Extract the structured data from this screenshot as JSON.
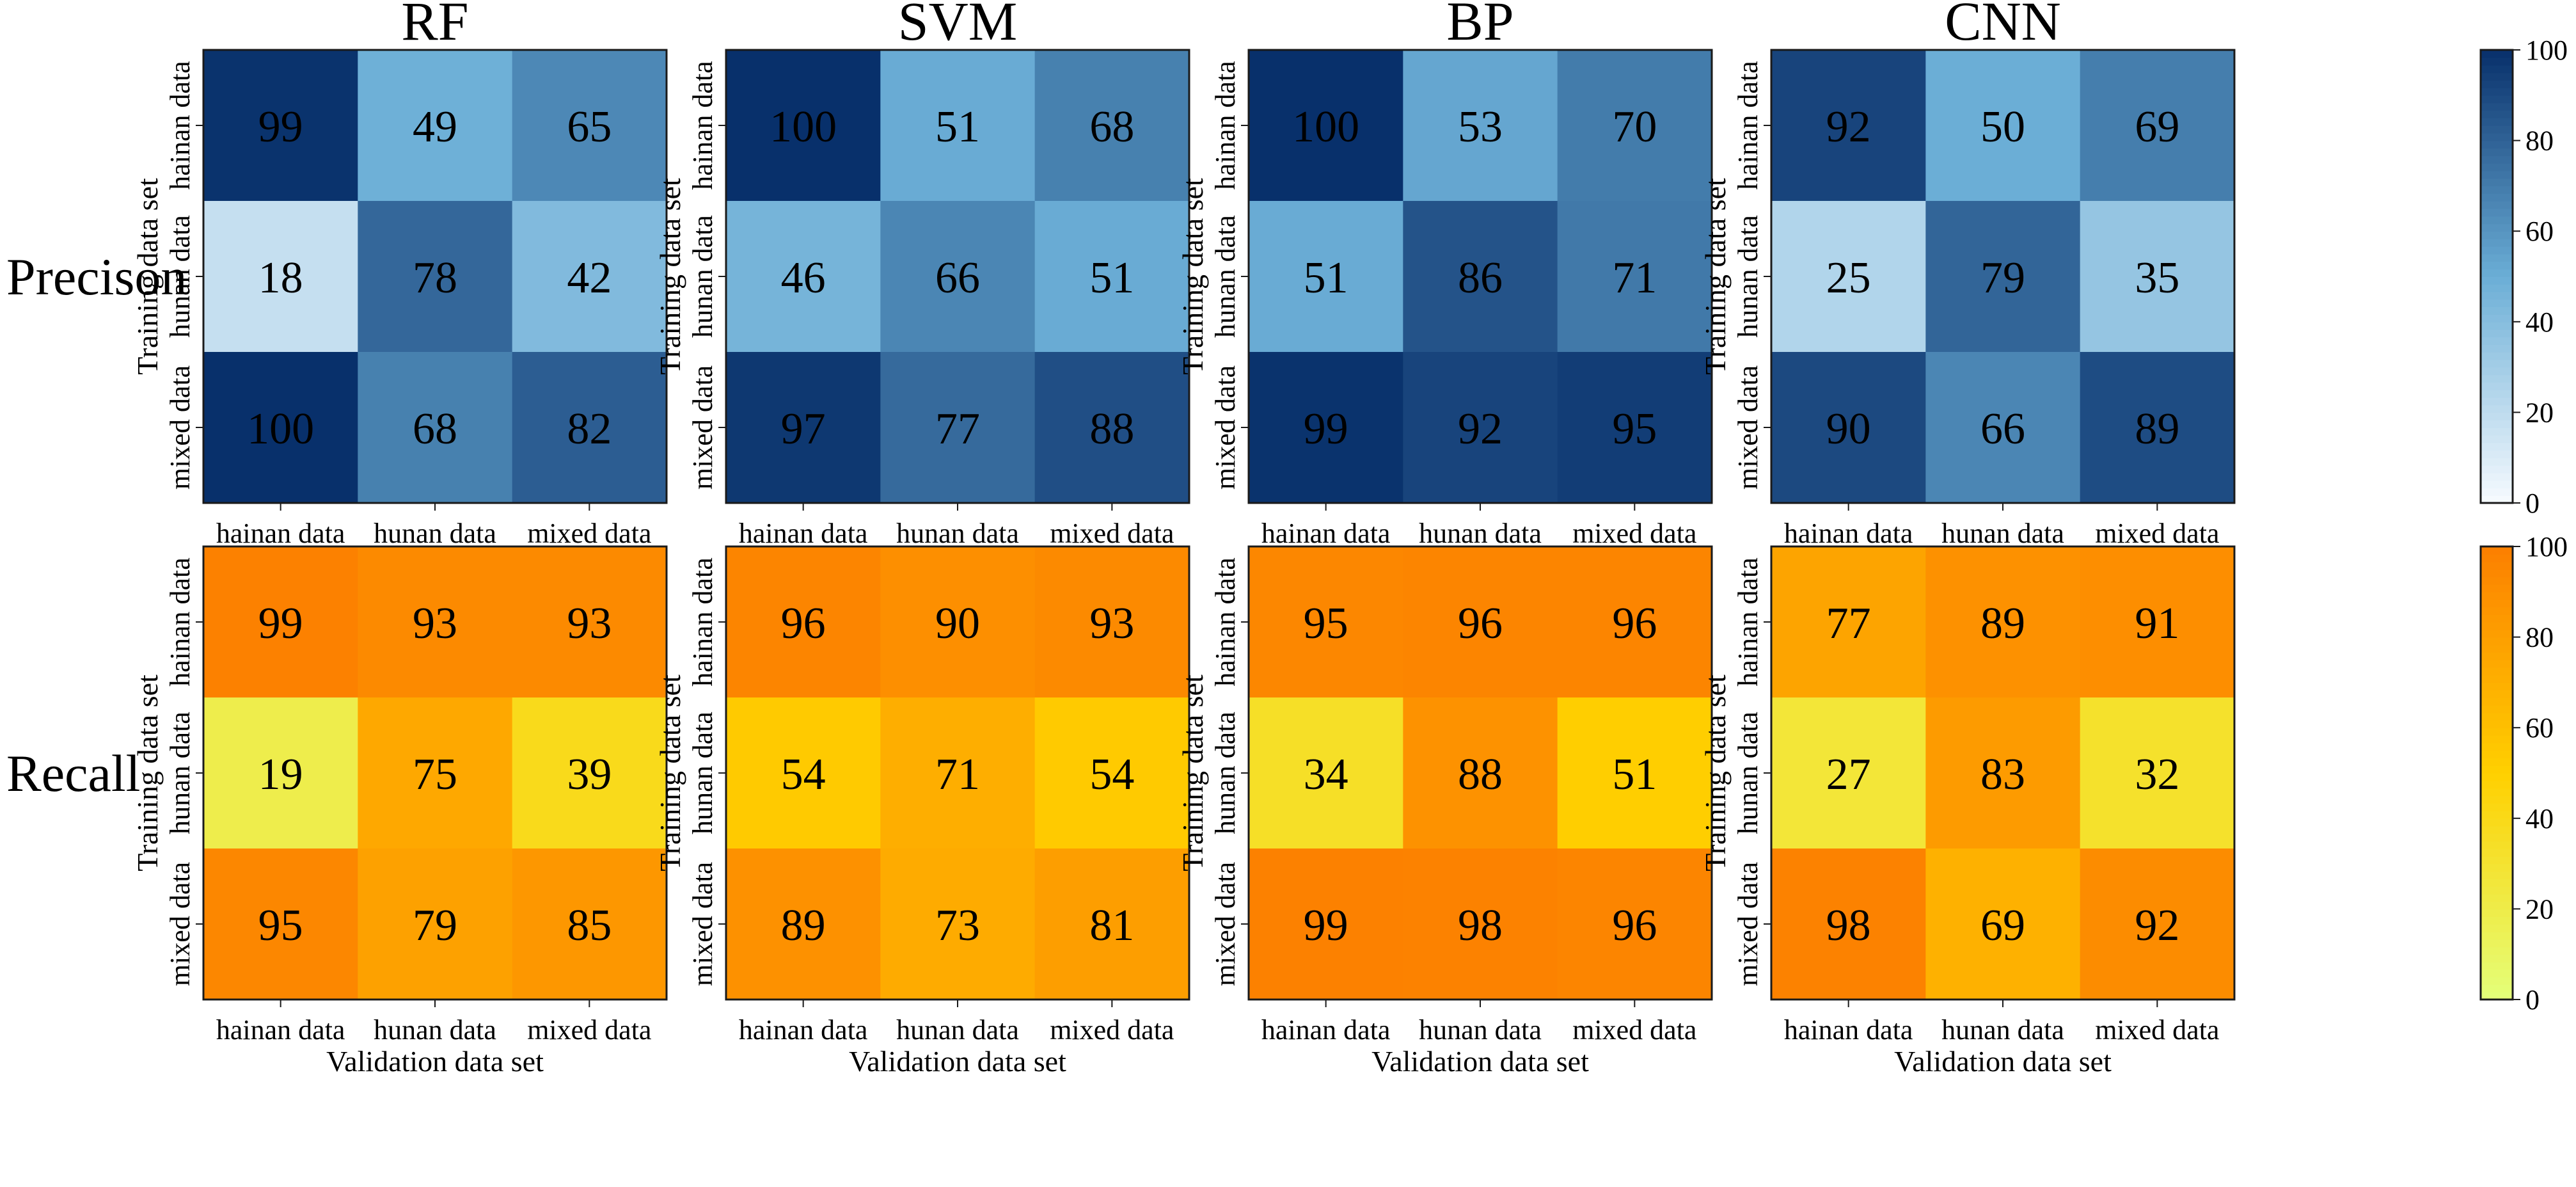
{
  "chart_data": {
    "type": "heatmap",
    "models": [
      "RF",
      "SVM",
      "BP",
      "CNN"
    ],
    "metrics": [
      {
        "key": "precision",
        "label": "Precison",
        "colormap": "blues",
        "colors": {
          "low": "#f7fbff",
          "mid": "#6baed6",
          "high": "#08306b"
        },
        "matrices": {
          "RF": [
            [
              99,
              49,
              65
            ],
            [
              18,
              78,
              42
            ],
            [
              100,
              68,
              82
            ]
          ],
          "SVM": [
            [
              100,
              51,
              68
            ],
            [
              46,
              66,
              51
            ],
            [
              97,
              77,
              88
            ]
          ],
          "BP": [
            [
              100,
              53,
              70
            ],
            [
              51,
              86,
              71
            ],
            [
              99,
              92,
              95
            ]
          ],
          "CNN": [
            [
              92,
              50,
              69
            ],
            [
              25,
              79,
              35
            ],
            [
              90,
              66,
              89
            ]
          ]
        }
      },
      {
        "key": "recall",
        "label": "Recall",
        "colormap": "wistia",
        "colors": {
          "low": "#e4ff7a",
          "mid": "#ffd000",
          "high": "#fc7f00"
        },
        "matrices": {
          "RF": [
            [
              99,
              93,
              93
            ],
            [
              19,
              75,
              39
            ],
            [
              95,
              79,
              85
            ]
          ],
          "SVM": [
            [
              96,
              90,
              93
            ],
            [
              54,
              71,
              54
            ],
            [
              89,
              73,
              81
            ]
          ],
          "BP": [
            [
              95,
              96,
              96
            ],
            [
              34,
              88,
              51
            ],
            [
              99,
              98,
              96
            ]
          ],
          "CNN": [
            [
              77,
              89,
              91
            ],
            [
              27,
              83,
              32
            ],
            [
              98,
              69,
              92
            ]
          ]
        }
      }
    ],
    "x_categories": [
      "hainan data",
      "hunan data",
      "mixed data"
    ],
    "y_categories": [
      "hainan data",
      "hunan data",
      "mixed data"
    ],
    "xlabel": "Validation data set",
    "ylabel": "Training data set",
    "colorbar_range": [
      0,
      100
    ],
    "colorbar_ticks": [
      "0",
      "20",
      "40",
      "60",
      "80",
      "100"
    ]
  }
}
